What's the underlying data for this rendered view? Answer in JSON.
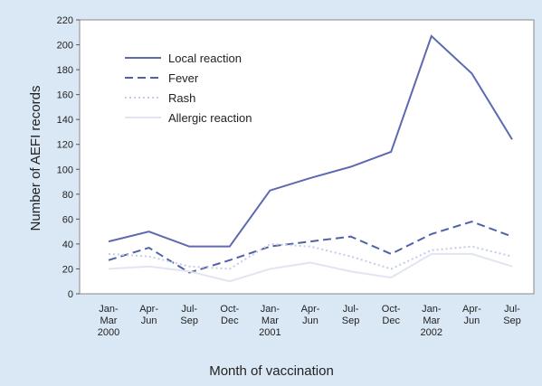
{
  "chart_data": {
    "type": "line",
    "xlabel": "Month of vaccination",
    "ylabel": "Number of AEFI records",
    "categories": [
      "Jan-Mar 2000",
      "Apr-Jun",
      "Jul-Sep",
      "Oct-Dec",
      "Jan-Mar 2001",
      "Apr-Jun",
      "Jul-Sep",
      "Oct-Dec",
      "Jan-Mar 2002",
      "Apr-Jun",
      "Jul-Sep"
    ],
    "series": [
      {
        "name": "Local reaction",
        "color": "#5d69b1",
        "dash": "solid",
        "values": [
          42,
          50,
          38,
          38,
          83,
          93,
          102,
          114,
          207,
          177,
          124
        ]
      },
      {
        "name": "Fever",
        "color": "#4f62a6",
        "dash": "dashed",
        "values": [
          27,
          37,
          17,
          27,
          38,
          42,
          46,
          32,
          48,
          58,
          46
        ]
      },
      {
        "name": "Rash",
        "color": "#c4cce6",
        "dash": "dotted",
        "values": [
          32,
          30,
          22,
          20,
          40,
          38,
          30,
          20,
          35,
          38,
          30
        ]
      },
      {
        "name": "Allergic reaction",
        "color": "#e2e5f1",
        "dash": "solid",
        "values": [
          20,
          22,
          18,
          10,
          20,
          25,
          18,
          13,
          32,
          32,
          22
        ]
      }
    ],
    "ylim": [
      0,
      220
    ],
    "yticks": [
      0,
      20,
      40,
      60,
      80,
      100,
      120,
      140,
      160,
      180,
      200,
      220
    ],
    "legend": "upper left"
  }
}
